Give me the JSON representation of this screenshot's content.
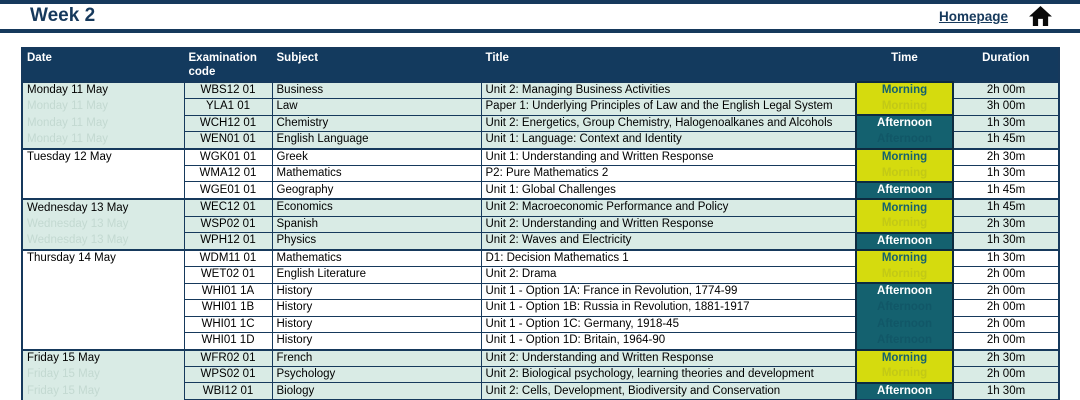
{
  "page_title": "Week 2",
  "nav": {
    "homepage_label": "Homepage",
    "home_icon": "home-icon"
  },
  "colors": {
    "navy": "#16395c",
    "header_bg": "#133a5e",
    "row_mint": "#d9ebe5",
    "morning_bg": "#d5db0e",
    "morning_text": "#14616f",
    "afternoon_bg": "#14616f",
    "afternoon_text": "#ffffff"
  },
  "table": {
    "columns": [
      "Date",
      "Examination code",
      "Subject",
      "Title",
      "Time",
      "Duration"
    ],
    "days": [
      {
        "date": "Monday 11 May",
        "shade": "mint",
        "sessions": [
          {
            "label": "Morning",
            "span": 2
          },
          {
            "label": "Afternoon",
            "span": 2
          }
        ],
        "exams": [
          {
            "code": "WBS12 01",
            "subject": "Business",
            "title": "Unit 2: Managing Business Activities",
            "duration": "2h 00m"
          },
          {
            "code": "YLA1 01",
            "subject": "Law",
            "title": "Paper 1: Underlying Principles of Law and the English Legal System",
            "duration": "3h 00m"
          },
          {
            "code": "WCH12 01",
            "subject": "Chemistry",
            "title": "Unit 2: Energetics, Group Chemistry, Halogenoalkanes and Alcohols",
            "duration": "1h 30m"
          },
          {
            "code": "WEN01 01",
            "subject": "English Language",
            "title": "Unit 1: Language: Context and Identity",
            "duration": "1h 45m"
          }
        ]
      },
      {
        "date": "Tuesday 12 May",
        "shade": "white",
        "sessions": [
          {
            "label": "Morning",
            "span": 2
          },
          {
            "label": "Afternoon",
            "span": 1
          }
        ],
        "exams": [
          {
            "code": "WGK01 01",
            "subject": "Greek",
            "title": "Unit 1: Understanding and Written Response",
            "duration": "2h 30m"
          },
          {
            "code": "WMA12 01",
            "subject": "Mathematics",
            "title": "P2: Pure Mathematics 2",
            "duration": "1h 30m"
          },
          {
            "code": "WGE01 01",
            "subject": "Geography",
            "title": "Unit 1: Global Challenges",
            "duration": "1h 45m"
          }
        ]
      },
      {
        "date": "Wednesday 13 May",
        "shade": "mint",
        "sessions": [
          {
            "label": "Morning",
            "span": 2
          },
          {
            "label": "Afternoon",
            "span": 1
          }
        ],
        "exams": [
          {
            "code": "WEC12 01",
            "subject": "Economics",
            "title": "Unit 2: Macroeconomic Performance and Policy",
            "duration": "1h 45m"
          },
          {
            "code": "WSP02 01",
            "subject": "Spanish",
            "title": "Unit 2: Understanding and Written Response",
            "duration": "2h 30m"
          },
          {
            "code": "WPH12 01",
            "subject": "Physics",
            "title": "Unit 2: Waves and Electricity",
            "duration": "1h 30m"
          }
        ]
      },
      {
        "date": "Thursday 14 May",
        "shade": "white",
        "sessions": [
          {
            "label": "Morning",
            "span": 2
          },
          {
            "label": "Afternoon",
            "span": 4
          }
        ],
        "exams": [
          {
            "code": "WDM11 01",
            "subject": "Mathematics",
            "title": "D1: Decision Mathematics 1",
            "duration": "1h 30m"
          },
          {
            "code": "WET02 01",
            "subject": "English Literature",
            "title": "Unit 2: Drama",
            "duration": "2h 00m"
          },
          {
            "code": "WHI01 1A",
            "subject": "History",
            "title": "Unit 1 - Option 1A: France in Revolution, 1774-99",
            "duration": "2h 00m"
          },
          {
            "code": "WHI01 1B",
            "subject": "History",
            "title": "Unit 1 - Option 1B: Russia in Revolution, 1881-1917",
            "duration": "2h 00m"
          },
          {
            "code": "WHI01 1C",
            "subject": "History",
            "title": "Unit 1 - Option 1C: Germany, 1918-45",
            "duration": "2h 00m"
          },
          {
            "code": "WHI01 1D",
            "subject": "History",
            "title": "Unit 1 - Option 1D: Britain, 1964-90",
            "duration": "2h 00m"
          }
        ]
      },
      {
        "date": "Friday 15 May",
        "shade": "mint",
        "sessions": [
          {
            "label": "Morning",
            "span": 2
          },
          {
            "label": "Afternoon",
            "span": 1
          }
        ],
        "exams": [
          {
            "code": "WFR02 01",
            "subject": "French",
            "title": "Unit 2: Understanding and Written Response",
            "duration": "2h 30m"
          },
          {
            "code": "WPS02 01",
            "subject": "Psychology",
            "title": "Unit 2: Biological psychology, learning theories and development",
            "duration": "2h 00m"
          },
          {
            "code": "WBI12 01",
            "subject": "Biology",
            "title": "Unit 2: Cells, Development, Biodiversity and Conservation",
            "duration": "1h 30m"
          }
        ]
      }
    ]
  }
}
